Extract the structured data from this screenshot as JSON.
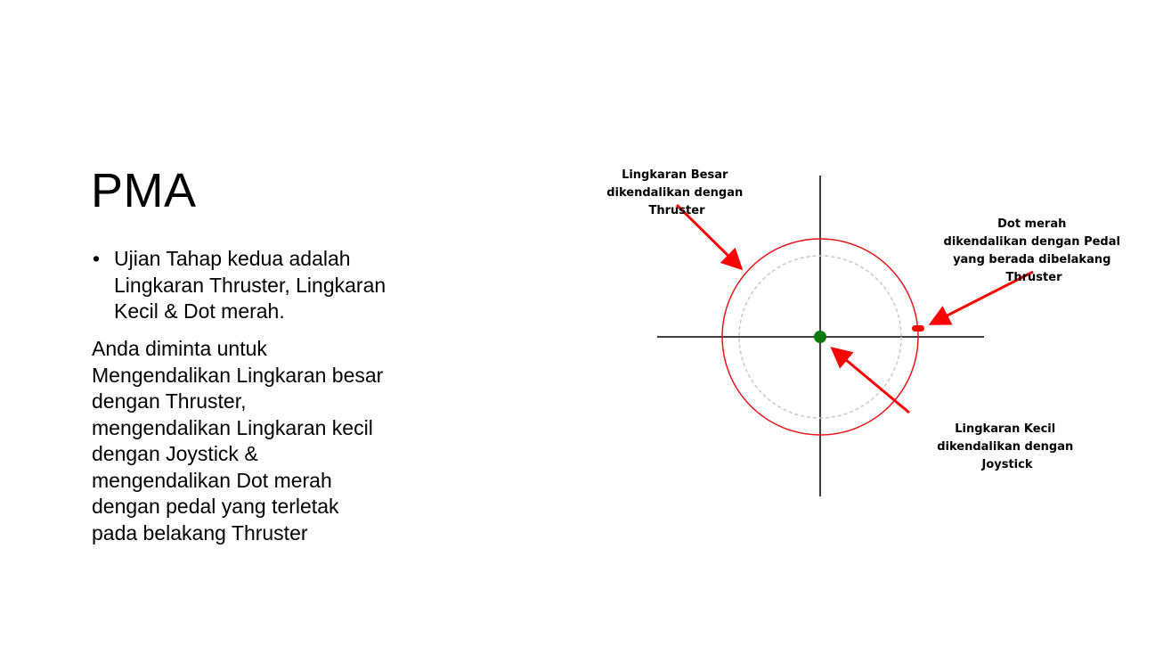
{
  "slide": {
    "title": "PMA",
    "bullet_marker": "•",
    "bullet_text": "Ujian Tahap kedua adalah Lingkaran Thruster, Lingkaran Kecil & Dot merah.",
    "body_lines": [
      "Anda diminta untuk",
      "Mengendalikan Lingkaran besar",
      "dengan Thruster,",
      "mengendalikan Lingkaran kecil",
      "dengan Joystick &",
      "mengendalikan Dot merah",
      "dengan pedal yang terletak",
      "pada belakang Thruster"
    ]
  },
  "diagram": {
    "colors": {
      "axis": "#000000",
      "large_circle": "#e8141b",
      "small_circle": "#c8c8c8",
      "center_dot": "#0b7a0b",
      "red_dot": "#ff0000",
      "arrow": "#ff0000"
    },
    "labels": {
      "large_circle": [
        "Lingkaran Besar",
        "dikendalikan dengan",
        "Thruster"
      ],
      "red_dot": [
        "Dot merah",
        "dikendalikan dengan Pedal",
        "yang berada dibelakang",
        "Thruster"
      ],
      "small_circle": [
        "Lingkaran Kecil",
        "dikendalikan dengan",
        "Joystick"
      ]
    }
  }
}
